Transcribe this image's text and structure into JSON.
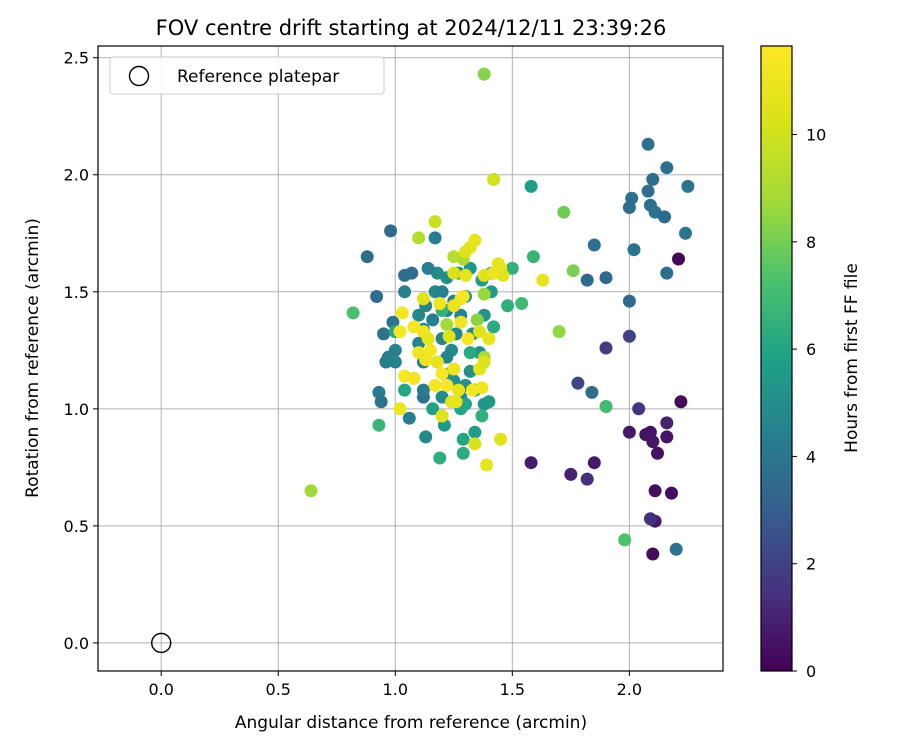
{
  "chart_data": {
    "type": "scatter",
    "title": "FOV centre drift starting at 2024/12/11 23:39:26",
    "xlabel": "Angular distance from reference (arcmin)",
    "ylabel": "Rotation from reference (arcmin)",
    "xlim": [
      -0.27,
      2.4
    ],
    "ylim": [
      -0.12,
      2.55
    ],
    "xticks": [
      0.0,
      0.5,
      1.0,
      1.5,
      2.0
    ],
    "xtick_labels": [
      "0.0",
      "0.5",
      "1.0",
      "1.5",
      "2.0"
    ],
    "yticks": [
      0.0,
      0.5,
      1.0,
      1.5,
      2.0,
      2.5
    ],
    "ytick_labels": [
      "0.0",
      "0.5",
      "1.0",
      "1.5",
      "2.0",
      "2.5"
    ],
    "grid": true,
    "colormap": "viridis",
    "colorbar": {
      "label": "Hours from first FF file",
      "min": 0,
      "max": 11.65,
      "ticks": [
        0,
        2,
        4,
        6,
        8,
        10
      ],
      "tick_labels": [
        "0",
        "2",
        "4",
        "6",
        "8",
        "10"
      ]
    },
    "legend": {
      "position": "top-left",
      "entries": [
        {
          "label": "Reference platepar",
          "marker": "open-circle"
        }
      ]
    },
    "reference_point": {
      "x": 0.0,
      "y": 0.0
    },
    "points": [
      [
        2.21,
        1.64,
        0.2
      ],
      [
        2.22,
        1.03,
        0.3
      ],
      [
        2.12,
        0.81,
        0.5
      ],
      [
        2.1,
        0.38,
        0.3
      ],
      [
        2.18,
        0.64,
        0.4
      ],
      [
        2.11,
        0.65,
        0.4
      ],
      [
        2.11,
        0.52,
        0.8
      ],
      [
        2.16,
        0.88,
        0.6
      ],
      [
        2.1,
        0.86,
        0.7
      ],
      [
        2.07,
        0.89,
        0.5
      ],
      [
        2.09,
        0.9,
        0.6
      ],
      [
        2.0,
        0.9,
        0.7
      ],
      [
        2.16,
        0.94,
        1.0
      ],
      [
        2.09,
        0.53,
        1.4
      ],
      [
        1.58,
        0.77,
        0.8
      ],
      [
        1.85,
        0.77,
        0.7
      ],
      [
        1.75,
        0.72,
        1.0
      ],
      [
        1.82,
        0.7,
        1.4
      ],
      [
        2.04,
        1.0,
        1.5
      ],
      [
        1.9,
        1.26,
        1.8
      ],
      [
        2.0,
        1.31,
        2.0
      ],
      [
        1.78,
        1.11,
        2.1
      ],
      [
        2.08,
        2.13,
        3.8
      ],
      [
        2.1,
        1.98,
        3.7
      ],
      [
        2.16,
        2.03,
        3.7
      ],
      [
        2.25,
        1.95,
        3.9
      ],
      [
        2.08,
        1.93,
        3.6
      ],
      [
        2.01,
        1.9,
        3.8
      ],
      [
        2.09,
        1.87,
        3.7
      ],
      [
        2.0,
        1.86,
        3.6
      ],
      [
        2.11,
        1.84,
        3.9
      ],
      [
        2.15,
        1.82,
        3.5
      ],
      [
        2.24,
        1.75,
        4.0
      ],
      [
        2.02,
        1.68,
        3.9
      ],
      [
        1.85,
        1.7,
        3.7
      ],
      [
        2.16,
        1.58,
        3.6
      ],
      [
        1.9,
        1.56,
        3.4
      ],
      [
        1.82,
        1.55,
        3.5
      ],
      [
        2.0,
        1.46,
        3.5
      ],
      [
        1.84,
        1.07,
        3.6
      ],
      [
        2.2,
        0.4,
        3.8
      ],
      [
        0.88,
        1.65,
        3.6
      ],
      [
        0.98,
        1.76,
        3.5
      ],
      [
        1.07,
        1.58,
        3.6
      ],
      [
        1.04,
        1.57,
        3.7
      ],
      [
        0.92,
        1.48,
        3.6
      ],
      [
        1.04,
        1.5,
        4.4
      ],
      [
        0.99,
        1.37,
        4.0
      ],
      [
        0.95,
        1.32,
        3.8
      ],
      [
        1.0,
        1.25,
        4.5
      ],
      [
        0.97,
        1.22,
        4.2
      ],
      [
        1.0,
        1.2,
        4.6
      ],
      [
        0.96,
        1.2,
        4.3
      ],
      [
        0.93,
        1.07,
        4.1
      ],
      [
        0.94,
        1.03,
        3.9
      ],
      [
        1.06,
        0.96,
        4.3
      ],
      [
        1.12,
        1.05,
        3.9
      ],
      [
        1.12,
        1.08,
        4.2
      ],
      [
        1.12,
        1.2,
        4.3
      ],
      [
        1.1,
        1.28,
        4.5
      ],
      [
        1.1,
        1.4,
        4.8
      ],
      [
        1.13,
        1.44,
        4.6
      ],
      [
        1.17,
        1.5,
        4.7
      ],
      [
        1.18,
        1.58,
        4.9
      ],
      [
        1.22,
        1.56,
        5.0
      ],
      [
        1.2,
        1.5,
        4.4
      ],
      [
        1.16,
        1.38,
        4.4
      ],
      [
        1.2,
        1.3,
        4.6
      ],
      [
        1.18,
        1.2,
        4.8
      ],
      [
        1.23,
        1.15,
        5.2
      ],
      [
        1.25,
        1.12,
        5.1
      ],
      [
        1.2,
        1.05,
        4.9
      ],
      [
        1.28,
        1.05,
        4.8
      ],
      [
        1.3,
        1.1,
        5.0
      ],
      [
        1.24,
        1.25,
        4.9
      ],
      [
        1.26,
        1.32,
        4.8
      ],
      [
        1.28,
        1.4,
        4.7
      ],
      [
        1.3,
        1.48,
        5.1
      ],
      [
        1.27,
        1.58,
        5.3
      ],
      [
        1.32,
        1.6,
        5.4
      ],
      [
        1.37,
        1.55,
        5.5
      ],
      [
        1.41,
        1.5,
        5.6
      ],
      [
        1.38,
        1.4,
        5.2
      ],
      [
        1.33,
        1.32,
        4.9
      ],
      [
        1.36,
        1.24,
        5.0
      ],
      [
        1.32,
        1.16,
        5.1
      ],
      [
        1.34,
        1.08,
        5.2
      ],
      [
        1.38,
        1.02,
        5.3
      ],
      [
        1.4,
        1.03,
        5.5
      ],
      [
        1.17,
        1.73,
        4.2
      ],
      [
        1.14,
        1.6,
        4.3
      ],
      [
        1.25,
        1.46,
        4.4
      ],
      [
        1.22,
        1.42,
        4.5
      ],
      [
        1.12,
        1.34,
        4.6
      ],
      [
        1.22,
        1.22,
        4.5
      ],
      [
        1.13,
        0.88,
        4.8
      ],
      [
        1.21,
        0.93,
        5.5
      ],
      [
        1.29,
        0.87,
        6.0
      ],
      [
        1.29,
        0.81,
        6.3
      ],
      [
        1.34,
        0.9,
        5.7
      ],
      [
        1.19,
        0.79,
        6.4
      ],
      [
        1.16,
        1.0,
        5.8
      ],
      [
        1.28,
        1.0,
        5.9
      ],
      [
        1.3,
        1.02,
        6.0
      ],
      [
        1.32,
        1.24,
        6.2
      ],
      [
        1.04,
        1.08,
        6.0
      ],
      [
        1.0,
        1.33,
        6.1
      ],
      [
        1.37,
        0.97,
        6.5
      ],
      [
        1.42,
        1.35,
        6.3
      ],
      [
        1.48,
        1.44,
        6.4
      ],
      [
        1.5,
        1.6,
        6.5
      ],
      [
        1.41,
        1.58,
        6.6
      ],
      [
        1.58,
        1.95,
        5.6
      ],
      [
        1.59,
        1.65,
        6.7
      ],
      [
        1.54,
        1.45,
        6.9
      ],
      [
        1.2,
        1.42,
        6.6
      ],
      [
        1.9,
        1.01,
        7.0
      ],
      [
        1.98,
        0.44,
        7.3
      ],
      [
        0.82,
        1.41,
        7.2
      ],
      [
        0.93,
        0.93,
        6.8
      ],
      [
        1.72,
        1.84,
        7.9
      ],
      [
        1.76,
        1.59,
        8.1
      ],
      [
        1.7,
        1.33,
        8.5
      ],
      [
        1.38,
        2.43,
        8.3
      ],
      [
        1.38,
        1.49,
        8.6
      ],
      [
        1.35,
        1.38,
        8.4
      ],
      [
        0.64,
        0.65,
        8.7
      ],
      [
        1.29,
        1.64,
        9.0
      ],
      [
        1.25,
        1.65,
        9.3
      ],
      [
        1.1,
        1.73,
        9.2
      ],
      [
        1.17,
        1.8,
        9.8
      ],
      [
        1.42,
        1.98,
        10.0
      ],
      [
        1.38,
        1.22,
        8.9
      ],
      [
        1.22,
        1.36,
        8.8
      ],
      [
        1.34,
        1.72,
        10.8
      ],
      [
        1.32,
        1.69,
        10.7
      ],
      [
        1.3,
        1.67,
        10.4
      ],
      [
        1.44,
        1.62,
        10.9
      ],
      [
        1.45,
        1.6,
        10.8
      ],
      [
        1.46,
        1.57,
        10.6
      ],
      [
        1.63,
        1.55,
        10.7
      ],
      [
        1.38,
        1.57,
        10.5
      ],
      [
        1.3,
        1.57,
        10.8
      ],
      [
        1.25,
        1.58,
        10.3
      ],
      [
        1.28,
        1.47,
        10.6
      ],
      [
        1.25,
        1.44,
        10.9
      ],
      [
        1.12,
        1.47,
        10.5
      ],
      [
        1.03,
        1.41,
        11.2
      ],
      [
        1.08,
        1.35,
        11.3
      ],
      [
        1.12,
        1.33,
        11.0
      ],
      [
        1.14,
        1.3,
        10.8
      ],
      [
        1.02,
        1.33,
        11.4
      ],
      [
        1.1,
        1.24,
        11.1
      ],
      [
        1.13,
        1.21,
        11.0
      ],
      [
        1.15,
        1.25,
        11.2
      ],
      [
        1.18,
        1.2,
        10.9
      ],
      [
        1.2,
        1.15,
        11.3
      ],
      [
        1.22,
        1.1,
        11.4
      ],
      [
        1.25,
        1.17,
        11.0
      ],
      [
        1.27,
        1.08,
        10.8
      ],
      [
        1.33,
        1.08,
        11.3
      ],
      [
        1.37,
        1.09,
        11.1
      ],
      [
        1.36,
        1.17,
        10.7
      ],
      [
        1.38,
        1.2,
        10.5
      ],
      [
        1.36,
        1.33,
        10.6
      ],
      [
        1.4,
        1.3,
        10.8
      ],
      [
        1.31,
        1.3,
        11.5
      ],
      [
        1.28,
        1.37,
        11.1
      ],
      [
        1.23,
        1.31,
        10.4
      ],
      [
        1.24,
        1.03,
        10.5
      ],
      [
        1.26,
        1.03,
        10.9
      ],
      [
        1.2,
        0.97,
        10.6
      ],
      [
        1.02,
        1.0,
        11.0
      ],
      [
        1.04,
        1.14,
        11.4
      ],
      [
        1.08,
        1.13,
        11.2
      ],
      [
        1.17,
        1.1,
        11.3
      ],
      [
        1.19,
        1.45,
        11.1
      ],
      [
        1.29,
        1.48,
        11.4
      ],
      [
        1.42,
        1.58,
        11.0
      ],
      [
        1.34,
        0.85,
        10.3
      ],
      [
        1.45,
        0.87,
        10.5
      ],
      [
        1.39,
        0.76,
        10.7
      ]
    ]
  }
}
